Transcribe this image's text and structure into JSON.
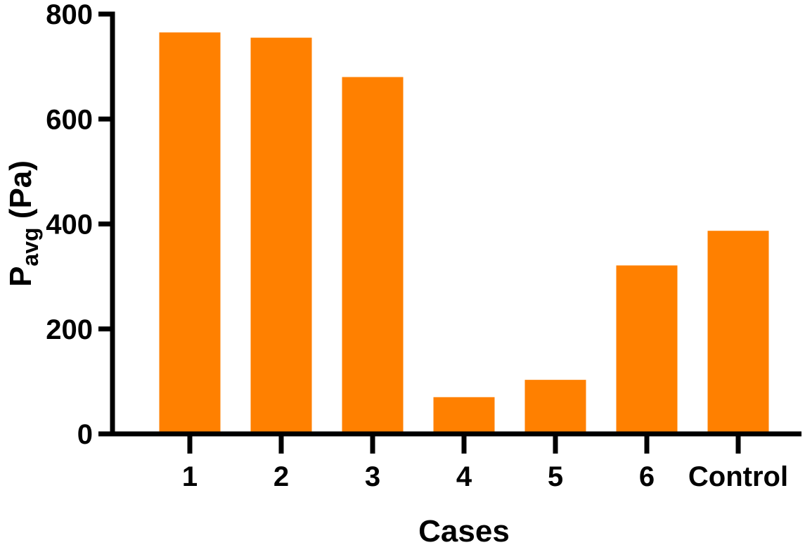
{
  "chart_data": {
    "type": "bar",
    "categories": [
      "1",
      "2",
      "3",
      "4",
      "5",
      "6",
      "Control"
    ],
    "values": [
      765,
      755,
      680,
      70,
      103,
      321,
      387
    ],
    "xlabel": "Cases",
    "ylabel": {
      "main": "P",
      "subscript": "avg",
      "suffix": " (Pa)"
    },
    "ylim": [
      0,
      800
    ],
    "yticks": [
      0,
      200,
      400,
      600,
      800
    ],
    "grid": false,
    "legend": "none",
    "bar_color": "#FF8000",
    "axis_color": "#000000"
  }
}
